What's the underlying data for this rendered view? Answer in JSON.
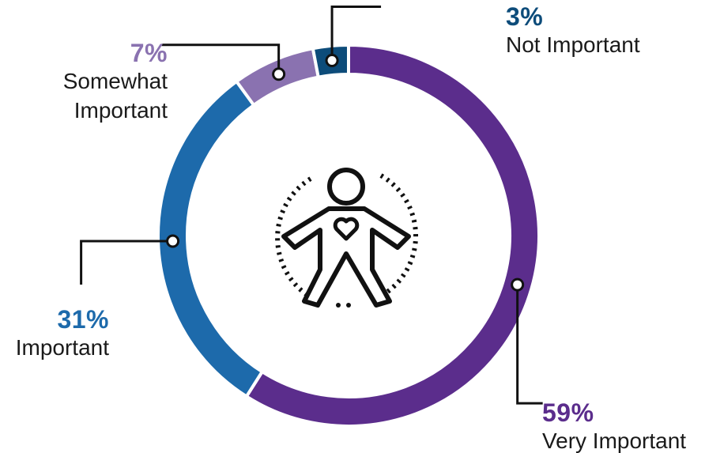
{
  "chart_data": {
    "type": "pie",
    "title": "",
    "categories": [
      "Very Important",
      "Important",
      "Somewhat Important",
      "Not Important"
    ],
    "values": [
      59,
      31,
      7,
      3
    ],
    "value_labels": [
      "59%",
      "31%",
      "7%",
      "3%"
    ],
    "label_lines": [
      [
        "Very Important"
      ],
      [
        "Important"
      ],
      [
        "Somewhat",
        "Important"
      ],
      [
        "Not Important"
      ]
    ],
    "colors": [
      "#5b2d8c",
      "#1d6aab",
      "#8a72b0",
      "#0d4c7a"
    ],
    "donut": true,
    "center_icon": "person-heart-icon"
  }
}
